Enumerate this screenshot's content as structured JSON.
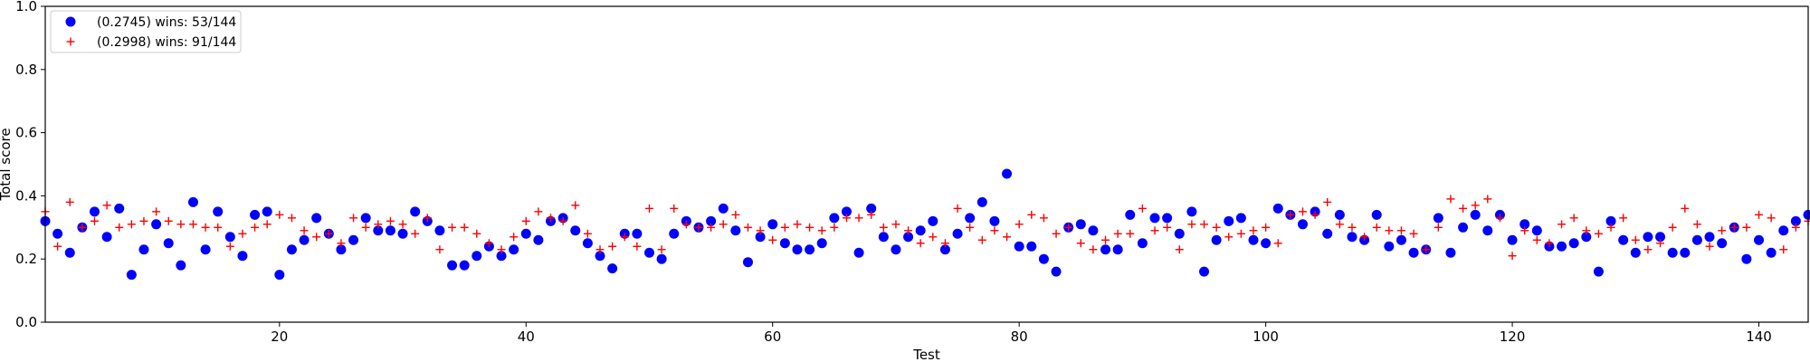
{
  "chart_data": {
    "type": "scatter",
    "xlabel": "Test",
    "ylabel": "Total score",
    "xlim": [
      1,
      144
    ],
    "ylim": [
      0.0,
      1.0
    ],
    "x_ticks": [
      20,
      40,
      60,
      80,
      100,
      120,
      140
    ],
    "y_ticks": [
      0.0,
      0.2,
      0.4,
      0.6,
      0.8,
      1.0
    ],
    "x_tick_labels": [
      "20",
      "40",
      "60",
      "80",
      "100",
      "120",
      "140"
    ],
    "y_tick_labels": [
      "0.0",
      "0.2",
      "0.4",
      "0.6",
      "0.8",
      "1.0"
    ],
    "grid": false,
    "legend_position": "top-left",
    "series": [
      {
        "name": "(0.2745) wins: 53/144",
        "marker": "circle",
        "color": "#0000ff",
        "x": [
          1,
          2,
          3,
          4,
          5,
          6,
          7,
          8,
          9,
          10,
          11,
          12,
          13,
          14,
          15,
          16,
          17,
          18,
          19,
          20,
          21,
          22,
          23,
          24,
          25,
          26,
          27,
          28,
          29,
          30,
          31,
          32,
          33,
          34,
          35,
          36,
          37,
          38,
          39,
          40,
          41,
          42,
          43,
          44,
          45,
          46,
          47,
          48,
          49,
          50,
          51,
          52,
          53,
          54,
          55,
          56,
          57,
          58,
          59,
          60,
          61,
          62,
          63,
          64,
          65,
          66,
          67,
          68,
          69,
          70,
          71,
          72,
          73,
          74,
          75,
          76,
          77,
          78,
          79,
          80,
          81,
          82,
          83,
          84,
          85,
          86,
          87,
          88,
          89,
          90,
          91,
          92,
          93,
          94,
          95,
          96,
          97,
          98,
          99,
          100,
          101,
          102,
          103,
          104,
          105,
          106,
          107,
          108,
          109,
          110,
          111,
          112,
          113,
          114,
          115,
          116,
          117,
          118,
          119,
          120,
          121,
          122,
          123,
          124,
          125,
          126,
          127,
          128,
          129,
          130,
          131,
          132,
          133,
          134,
          135,
          136,
          137,
          138,
          139,
          140,
          141,
          142,
          143,
          144
        ],
        "y": [
          0.32,
          0.28,
          0.22,
          0.3,
          0.35,
          0.27,
          0.36,
          0.15,
          0.23,
          0.31,
          0.25,
          0.18,
          0.38,
          0.23,
          0.35,
          0.27,
          0.21,
          0.34,
          0.35,
          0.15,
          0.23,
          0.26,
          0.33,
          0.28,
          0.23,
          0.26,
          0.33,
          0.29,
          0.29,
          0.28,
          0.35,
          0.32,
          0.29,
          0.18,
          0.18,
          0.21,
          0.24,
          0.21,
          0.23,
          0.28,
          0.26,
          0.32,
          0.33,
          0.29,
          0.25,
          0.21,
          0.17,
          0.28,
          0.28,
          0.22,
          0.2,
          0.28,
          0.32,
          0.3,
          0.32,
          0.36,
          0.29,
          0.19,
          0.27,
          0.31,
          0.25,
          0.23,
          0.23,
          0.25,
          0.33,
          0.35,
          0.22,
          0.36,
          0.27,
          0.23,
          0.27,
          0.29,
          0.32,
          0.23,
          0.28,
          0.33,
          0.38,
          0.32,
          0.47,
          0.24,
          0.24,
          0.2,
          0.16,
          0.3,
          0.31,
          0.29,
          0.23,
          0.23,
          0.34,
          0.25,
          0.33,
          0.33,
          0.28,
          0.35,
          0.16,
          0.26,
          0.32,
          0.33,
          0.26,
          0.25,
          0.36,
          0.34,
          0.31,
          0.35,
          0.28,
          0.34,
          0.27,
          0.26,
          0.34,
          0.24,
          0.26,
          0.22,
          0.23,
          0.33,
          0.22,
          0.3,
          0.34,
          0.29,
          0.34,
          0.26,
          0.31,
          0.29,
          0.24,
          0.24,
          0.25,
          0.27,
          0.16,
          0.32,
          0.26,
          0.22,
          0.27,
          0.27,
          0.22,
          0.22,
          0.26,
          0.27,
          0.25,
          0.3,
          0.2,
          0.26,
          0.22,
          0.29,
          0.32,
          0.34
        ]
      },
      {
        "name": "(0.2998) wins: 91/144",
        "marker": "plus",
        "color": "#ff0000",
        "x": [
          1,
          2,
          3,
          4,
          5,
          6,
          7,
          8,
          9,
          10,
          11,
          12,
          13,
          14,
          15,
          16,
          17,
          18,
          19,
          20,
          21,
          22,
          23,
          24,
          25,
          26,
          27,
          28,
          29,
          30,
          31,
          32,
          33,
          34,
          35,
          36,
          37,
          38,
          39,
          40,
          41,
          42,
          43,
          44,
          45,
          46,
          47,
          48,
          49,
          50,
          51,
          52,
          53,
          54,
          55,
          56,
          57,
          58,
          59,
          60,
          61,
          62,
          63,
          64,
          65,
          66,
          67,
          68,
          69,
          70,
          71,
          72,
          73,
          74,
          75,
          76,
          77,
          78,
          79,
          80,
          81,
          82,
          83,
          84,
          85,
          86,
          87,
          88,
          89,
          90,
          91,
          92,
          93,
          94,
          95,
          96,
          97,
          98,
          99,
          100,
          101,
          102,
          103,
          104,
          105,
          106,
          107,
          108,
          109,
          110,
          111,
          112,
          113,
          114,
          115,
          116,
          117,
          118,
          119,
          120,
          121,
          122,
          123,
          124,
          125,
          126,
          127,
          128,
          129,
          130,
          131,
          132,
          133,
          134,
          135,
          136,
          137,
          138,
          139,
          140,
          141,
          142,
          143,
          144
        ],
        "y": [
          0.35,
          0.24,
          0.38,
          0.3,
          0.32,
          0.37,
          0.3,
          0.31,
          0.32,
          0.35,
          0.32,
          0.31,
          0.31,
          0.3,
          0.3,
          0.24,
          0.28,
          0.3,
          0.31,
          0.34,
          0.33,
          0.29,
          0.27,
          0.28,
          0.25,
          0.33,
          0.3,
          0.31,
          0.32,
          0.31,
          0.28,
          0.33,
          0.23,
          0.3,
          0.3,
          0.28,
          0.25,
          0.23,
          0.27,
          0.32,
          0.35,
          0.33,
          0.32,
          0.37,
          0.28,
          0.23,
          0.24,
          0.27,
          0.24,
          0.36,
          0.23,
          0.36,
          0.31,
          0.3,
          0.3,
          0.31,
          0.34,
          0.3,
          0.29,
          0.26,
          0.3,
          0.31,
          0.3,
          0.29,
          0.3,
          0.33,
          0.33,
          0.34,
          0.3,
          0.31,
          0.29,
          0.25,
          0.27,
          0.25,
          0.36,
          0.3,
          0.26,
          0.29,
          0.27,
          0.31,
          0.34,
          0.33,
          0.28,
          0.3,
          0.25,
          0.23,
          0.26,
          0.28,
          0.28,
          0.36,
          0.29,
          0.3,
          0.23,
          0.31,
          0.31,
          0.3,
          0.27,
          0.28,
          0.29,
          0.3,
          0.25,
          0.34,
          0.35,
          0.34,
          0.38,
          0.31,
          0.3,
          0.27,
          0.3,
          0.29,
          0.29,
          0.28,
          0.23,
          0.3,
          0.39,
          0.36,
          0.37,
          0.39,
          0.33,
          0.21,
          0.29,
          0.26,
          0.25,
          0.31,
          0.33,
          0.29,
          0.28,
          0.3,
          0.33,
          0.26,
          0.23,
          0.25,
          0.3,
          0.36,
          0.31,
          0.24,
          0.29,
          0.3,
          0.3,
          0.34,
          0.33,
          0.23,
          0.3,
          0.32
        ]
      }
    ]
  }
}
